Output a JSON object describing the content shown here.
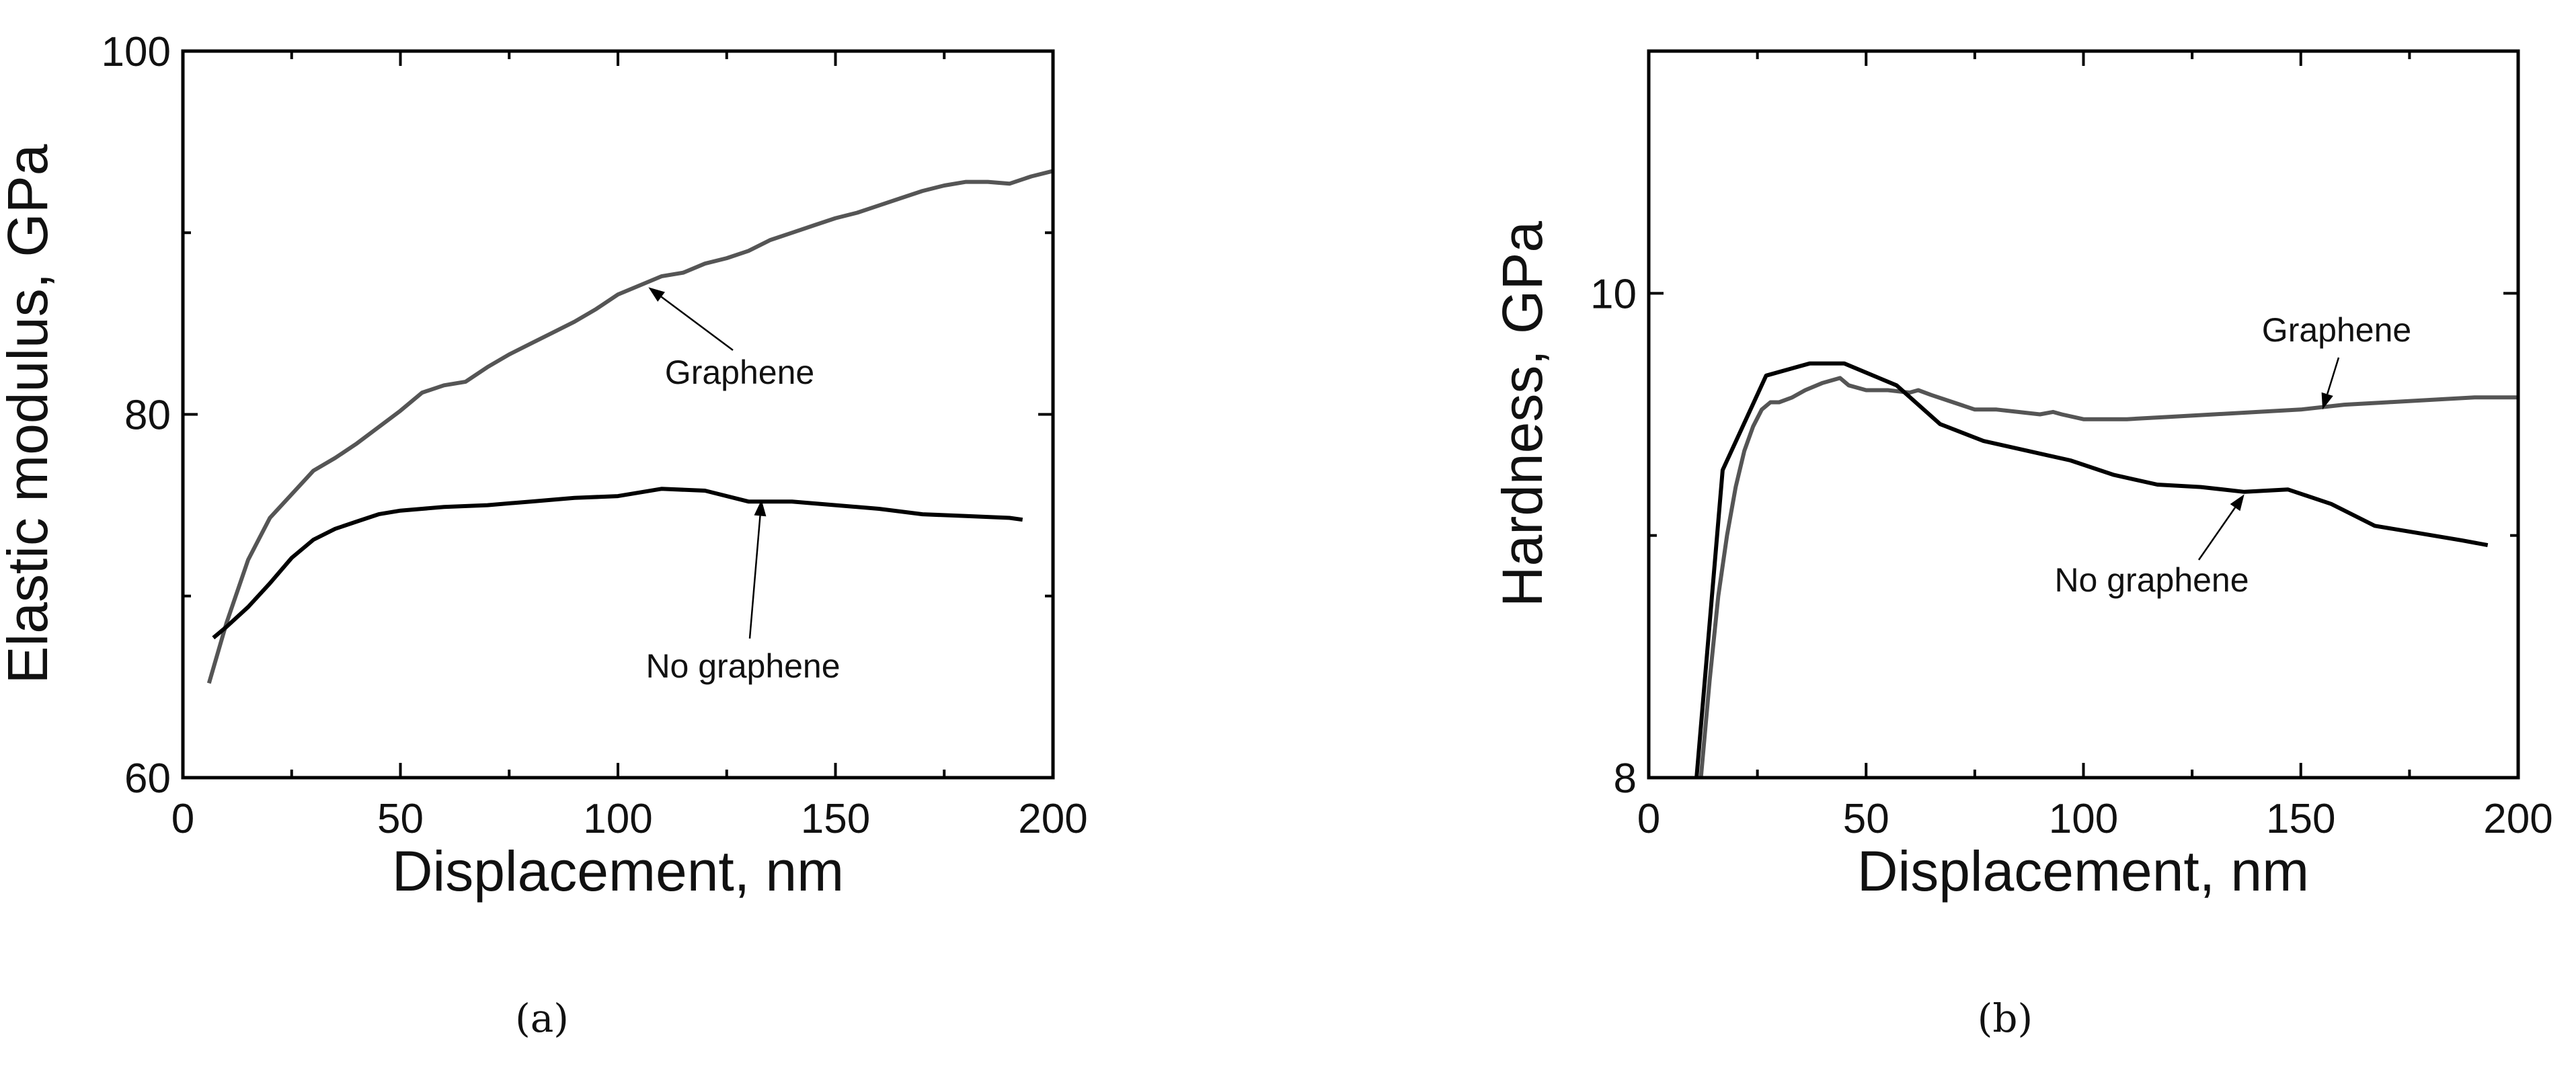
{
  "chart_data": [
    {
      "type": "line",
      "panel_label": "(a)",
      "xlabel": "Displacement, nm",
      "ylabel": "Elastic modulus, GPa",
      "xlim": [
        0,
        200
      ],
      "ylim": [
        60,
        100
      ],
      "x_ticks": [
        0,
        50,
        100,
        150,
        200
      ],
      "y_ticks": [
        60,
        80,
        100
      ],
      "x_minor_ticks": [
        25,
        75,
        125,
        175
      ],
      "y_minor_ticks": [
        70,
        90
      ],
      "grid": false,
      "series": [
        {
          "name": "Graphene",
          "color": "#555555",
          "x": [
            6,
            10,
            15,
            20,
            25,
            30,
            35,
            40,
            45,
            50,
            55,
            60,
            65,
            70,
            75,
            80,
            85,
            90,
            95,
            100,
            105,
            110,
            115,
            120,
            125,
            130,
            135,
            140,
            145,
            150,
            155,
            160,
            165,
            170,
            175,
            180,
            185,
            190,
            195,
            200
          ],
          "y": [
            65.2,
            68.5,
            72.0,
            74.3,
            75.6,
            76.9,
            77.6,
            78.4,
            79.3,
            80.2,
            81.2,
            81.6,
            81.8,
            82.6,
            83.3,
            83.9,
            84.5,
            85.1,
            85.8,
            86.6,
            87.1,
            87.6,
            87.8,
            88.3,
            88.6,
            89.0,
            89.6,
            90.0,
            90.4,
            90.8,
            91.1,
            91.5,
            91.9,
            92.3,
            92.6,
            92.8,
            92.8,
            92.7,
            93.1,
            93.4
          ]
        },
        {
          "name": "No graphene",
          "color": "#000000",
          "x": [
            7,
            10,
            15,
            20,
            25,
            30,
            35,
            40,
            45,
            50,
            55,
            60,
            70,
            80,
            90,
            100,
            110,
            120,
            130,
            140,
            150,
            160,
            170,
            180,
            190,
            193
          ],
          "y": [
            67.7,
            68.3,
            69.4,
            70.7,
            72.1,
            73.1,
            73.7,
            74.1,
            74.5,
            74.7,
            74.8,
            74.9,
            75.0,
            75.2,
            75.4,
            75.5,
            75.9,
            75.8,
            75.2,
            75.2,
            75.0,
            74.8,
            74.5,
            74.4,
            74.3,
            74.2
          ]
        }
      ],
      "annotations": [
        {
          "text": "Graphene",
          "points_to_x": 107,
          "points_to_y": 87.0
        },
        {
          "text": "No graphene",
          "points_to_x": 133,
          "points_to_y": 75.3
        }
      ]
    },
    {
      "type": "line",
      "panel_label": "(b)",
      "xlabel": "Displacement, nm",
      "ylabel": "Hardness, GPa",
      "xlim": [
        0,
        200
      ],
      "ylim": [
        8,
        11
      ],
      "x_ticks": [
        0,
        50,
        100,
        150,
        200
      ],
      "y_ticks": [
        8,
        10
      ],
      "x_minor_ticks": [
        25,
        75,
        125,
        175
      ],
      "y_minor_ticks": [
        9
      ],
      "grid": false,
      "series": [
        {
          "name": "Graphene",
          "color": "#555555",
          "x": [
            12,
            14,
            16,
            18,
            20,
            22,
            24,
            26,
            28,
            30,
            33,
            36,
            40,
            44,
            46,
            50,
            55,
            60,
            62,
            65,
            70,
            75,
            80,
            85,
            90,
            93,
            95,
            100,
            110,
            120,
            130,
            140,
            150,
            160,
            170,
            180,
            190,
            200
          ],
          "y": [
            8.0,
            8.4,
            8.75,
            9.0,
            9.2,
            9.35,
            9.45,
            9.52,
            9.55,
            9.55,
            9.57,
            9.6,
            9.63,
            9.65,
            9.62,
            9.6,
            9.6,
            9.59,
            9.6,
            9.58,
            9.55,
            9.52,
            9.52,
            9.51,
            9.5,
            9.51,
            9.5,
            9.48,
            9.48,
            9.49,
            9.5,
            9.51,
            9.52,
            9.54,
            9.55,
            9.56,
            9.57,
            9.57
          ]
        },
        {
          "name": "No graphene",
          "color": "#000000",
          "x": [
            11,
            17,
            27,
            37,
            45,
            57,
            67,
            77,
            87,
            97,
            107,
            117,
            127,
            137,
            147,
            157,
            167,
            177,
            187,
            193
          ],
          "y": [
            8.0,
            9.27,
            9.66,
            9.71,
            9.71,
            9.62,
            9.46,
            9.39,
            9.35,
            9.31,
            9.25,
            9.21,
            9.2,
            9.18,
            9.19,
            9.13,
            9.04,
            9.01,
            8.98,
            8.96
          ]
        }
      ],
      "annotations": [
        {
          "text": "Graphene",
          "points_to_x": 155,
          "points_to_y": 9.52
        },
        {
          "text": "No graphene",
          "points_to_x": 137,
          "points_to_y": 9.17
        }
      ]
    }
  ]
}
